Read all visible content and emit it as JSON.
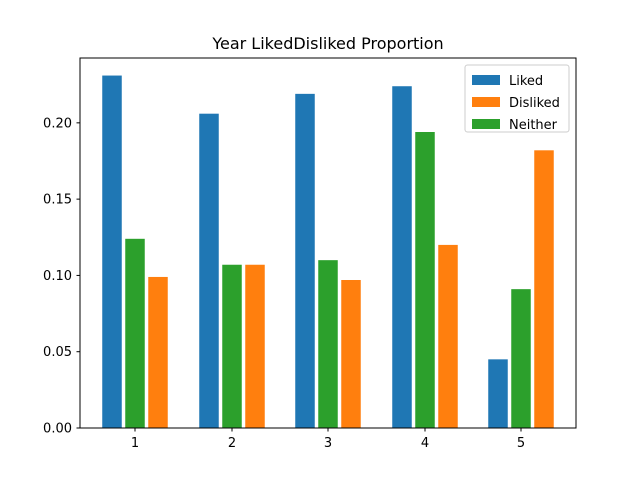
{
  "chart_data": {
    "type": "bar",
    "title": "Year LikedDisliked Proportion",
    "xlabel": "",
    "ylabel": "",
    "categories": [
      "1",
      "2",
      "3",
      "4",
      "5"
    ],
    "series": [
      {
        "name": "Liked",
        "color": "#1f77b4",
        "values": [
          0.231,
          0.206,
          0.219,
          0.224,
          0.045
        ]
      },
      {
        "name": "Neither",
        "color": "#2ca02c",
        "values": [
          0.124,
          0.107,
          0.11,
          0.194,
          0.091
        ]
      },
      {
        "name": "Disliked",
        "color": "#ff7f0e",
        "values": [
          0.099,
          0.107,
          0.097,
          0.12,
          0.182
        ]
      }
    ],
    "legend_order": [
      "Liked",
      "Disliked",
      "Neither"
    ],
    "ylim": [
      0,
      0.2425
    ],
    "yticks": [
      0.0,
      0.05,
      0.1,
      0.15,
      0.2
    ],
    "ytick_labels": [
      "0.00",
      "0.05",
      "0.10",
      "0.15",
      "0.20"
    ],
    "legend_position": "top-right",
    "grid": false
  }
}
